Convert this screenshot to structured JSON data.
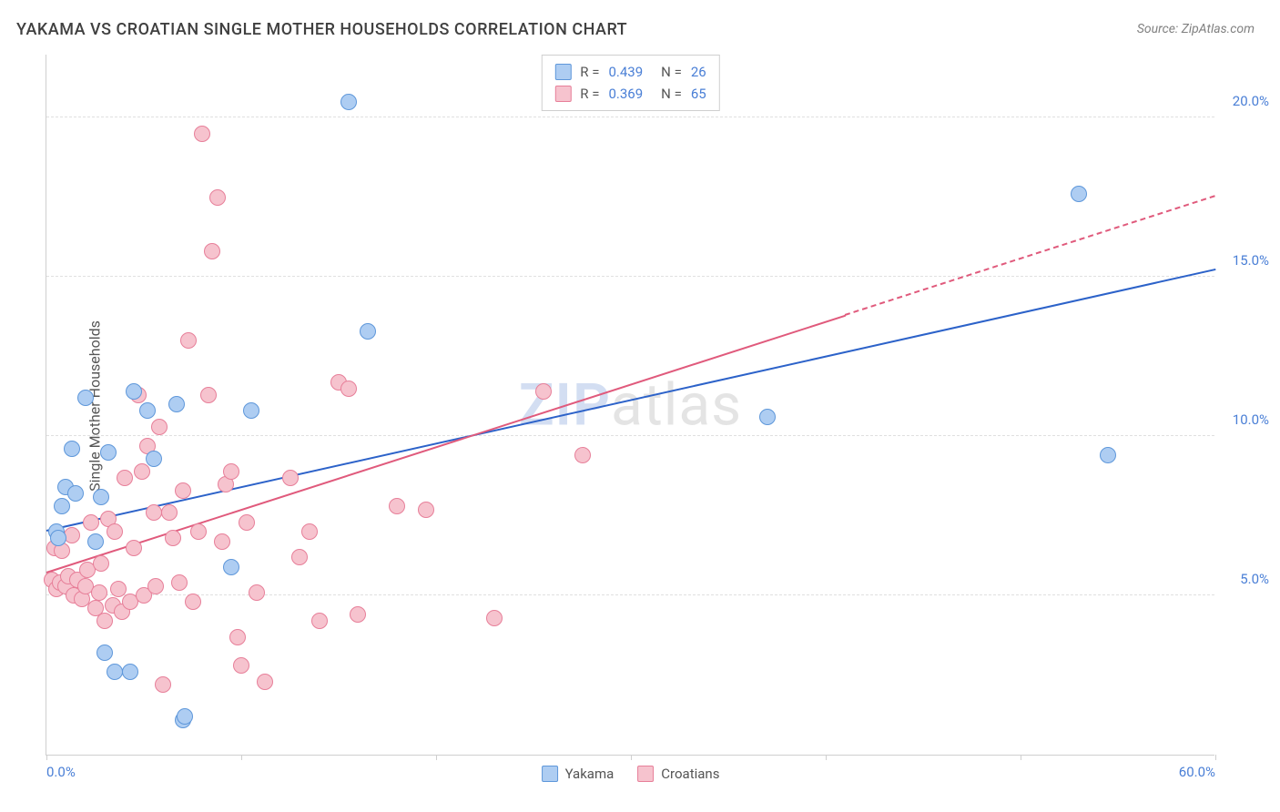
{
  "title": "YAKAMA VS CROATIAN SINGLE MOTHER HOUSEHOLDS CORRELATION CHART",
  "source": "Source: ZipAtlas.com",
  "yaxis_label": "Single Mother Households",
  "watermark": {
    "a": "ZIP",
    "b": "atlas"
  },
  "chart": {
    "type": "scatter",
    "background_color": "#ffffff",
    "grid_color": "#e0e0e0",
    "axis_color": "#cfcfcf",
    "xlim": [
      0,
      60
    ],
    "ylim": [
      0,
      22
    ],
    "xticks": [
      0,
      10,
      20,
      30,
      40,
      50,
      60
    ],
    "xtick_labels": {
      "0": "0.0%",
      "60": "60.0%"
    },
    "yticks": [
      5,
      10,
      15,
      20
    ],
    "ytick_labels": {
      "5": "5.0%",
      "10": "10.0%",
      "15": "15.0%",
      "20": "20.0%"
    },
    "title_fontsize": 18,
    "tick_fontsize": 15,
    "tick_color": "#4a7fd6",
    "marker_radius": 9,
    "marker_border_width": 1.5,
    "line_width": 2.5,
    "series": [
      {
        "name": "Yakama",
        "fill_color": "#aecdf2",
        "border_color": "#5e97da",
        "line_color": "#2c62c9",
        "r": "0.439",
        "n": "26",
        "regression": {
          "x1": 0,
          "y1": 7.0,
          "x2": 60,
          "y2": 15.2,
          "dashed_from_x": null
        },
        "points": [
          [
            0.5,
            7.0
          ],
          [
            0.6,
            6.8
          ],
          [
            0.8,
            7.8
          ],
          [
            1.0,
            8.4
          ],
          [
            1.3,
            9.6
          ],
          [
            1.5,
            8.2
          ],
          [
            2.0,
            11.2
          ],
          [
            2.5,
            6.7
          ],
          [
            2.8,
            8.1
          ],
          [
            3.0,
            3.2
          ],
          [
            3.2,
            9.5
          ],
          [
            3.5,
            2.6
          ],
          [
            4.3,
            2.6
          ],
          [
            4.5,
            11.4
          ],
          [
            5.2,
            10.8
          ],
          [
            5.5,
            9.3
          ],
          [
            6.7,
            11.0
          ],
          [
            7.0,
            1.1
          ],
          [
            7.1,
            1.2
          ],
          [
            9.5,
            5.9
          ],
          [
            10.5,
            10.8
          ],
          [
            15.5,
            20.5
          ],
          [
            16.5,
            13.3
          ],
          [
            37.0,
            10.6
          ],
          [
            53.0,
            17.6
          ],
          [
            54.5,
            9.4
          ]
        ]
      },
      {
        "name": "Croatians",
        "fill_color": "#f6c3ce",
        "border_color": "#e77f99",
        "line_color": "#e05a7c",
        "r": "0.369",
        "n": "65",
        "regression": {
          "x1": 0,
          "y1": 5.7,
          "x2": 60,
          "y2": 17.5,
          "dashed_from_x": 41
        },
        "points": [
          [
            0.3,
            5.5
          ],
          [
            0.4,
            6.5
          ],
          [
            0.5,
            5.2
          ],
          [
            0.7,
            5.4
          ],
          [
            0.8,
            6.4
          ],
          [
            1.0,
            5.3
          ],
          [
            1.1,
            5.6
          ],
          [
            1.3,
            6.9
          ],
          [
            1.4,
            5.0
          ],
          [
            1.6,
            5.5
          ],
          [
            1.8,
            4.9
          ],
          [
            2.0,
            5.3
          ],
          [
            2.1,
            5.8
          ],
          [
            2.3,
            7.3
          ],
          [
            2.5,
            4.6
          ],
          [
            2.7,
            5.1
          ],
          [
            2.8,
            6.0
          ],
          [
            3.0,
            4.2
          ],
          [
            3.2,
            7.4
          ],
          [
            3.4,
            4.7
          ],
          [
            3.5,
            7.0
          ],
          [
            3.7,
            5.2
          ],
          [
            3.9,
            4.5
          ],
          [
            4.0,
            8.7
          ],
          [
            4.3,
            4.8
          ],
          [
            4.5,
            6.5
          ],
          [
            4.7,
            11.3
          ],
          [
            4.9,
            8.9
          ],
          [
            5.0,
            5.0
          ],
          [
            5.2,
            9.7
          ],
          [
            5.5,
            7.6
          ],
          [
            5.6,
            5.3
          ],
          [
            5.8,
            10.3
          ],
          [
            6.0,
            2.2
          ],
          [
            6.3,
            7.6
          ],
          [
            6.5,
            6.8
          ],
          [
            6.8,
            5.4
          ],
          [
            7.0,
            8.3
          ],
          [
            7.3,
            13.0
          ],
          [
            7.5,
            4.8
          ],
          [
            7.8,
            7.0
          ],
          [
            8.0,
            19.5
          ],
          [
            8.3,
            11.3
          ],
          [
            8.5,
            15.8
          ],
          [
            8.8,
            17.5
          ],
          [
            9.0,
            6.7
          ],
          [
            9.2,
            8.5
          ],
          [
            9.5,
            8.9
          ],
          [
            9.8,
            3.7
          ],
          [
            10.0,
            2.8
          ],
          [
            10.3,
            7.3
          ],
          [
            10.8,
            5.1
          ],
          [
            11.2,
            2.3
          ],
          [
            12.5,
            8.7
          ],
          [
            13.0,
            6.2
          ],
          [
            13.5,
            7.0
          ],
          [
            14.0,
            4.2
          ],
          [
            15.0,
            11.7
          ],
          [
            15.5,
            11.5
          ],
          [
            16.0,
            4.4
          ],
          [
            18.0,
            7.8
          ],
          [
            19.5,
            7.7
          ],
          [
            23.0,
            4.3
          ],
          [
            25.5,
            11.4
          ],
          [
            27.5,
            9.4
          ]
        ]
      }
    ]
  },
  "legend": {
    "r_label": "R =",
    "n_label": "N ="
  }
}
